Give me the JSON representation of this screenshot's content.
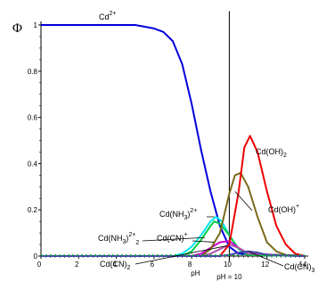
{
  "chart_data": {
    "type": "line",
    "ylabel": "Φ",
    "xlabel": "pH",
    "xlim": [
      0,
      14
    ],
    "ylim": [
      0,
      1
    ],
    "x_ticks": [
      "0",
      "2",
      "4",
      "6",
      "8",
      "10",
      "12",
      "14"
    ],
    "y_ticks": [
      "0",
      "0.2",
      "0.4",
      "0.6",
      "0.8",
      "1"
    ],
    "grid": false,
    "marker_line": {
      "x": 10,
      "label": "pH = 10"
    },
    "series": [
      {
        "name": "Cd2+",
        "color": "#0000dd",
        "x": [
          0,
          5,
          6,
          6.5,
          7,
          7.5,
          8,
          8.5,
          9,
          9.5,
          10,
          10.5,
          14
        ],
        "y": [
          1,
          1,
          0.985,
          0.97,
          0.93,
          0.83,
          0.66,
          0.46,
          0.28,
          0.13,
          0.04,
          0.01,
          0
        ]
      },
      {
        "name": "Cd(NH3)2+",
        "color": "#00e5ee",
        "x": [
          0,
          7,
          7.5,
          8,
          8.5,
          9,
          9.3,
          9.6,
          10,
          10.5,
          11,
          14
        ],
        "y": [
          0,
          0,
          0.01,
          0.04,
          0.09,
          0.15,
          0.17,
          0.15,
          0.09,
          0.03,
          0.005,
          0
        ]
      },
      {
        "name": "Cd(NH3)2 2+",
        "color": "#00cc44",
        "x": [
          0,
          7.5,
          8,
          8.5,
          9,
          9.2,
          9.5,
          10,
          10.5,
          11,
          14
        ],
        "y": [
          0,
          0,
          0.02,
          0.07,
          0.13,
          0.15,
          0.14,
          0.09,
          0.03,
          0.005,
          0
        ]
      },
      {
        "name": "Cd(CN)+",
        "color": "#cc00cc",
        "x": [
          0,
          8,
          8.5,
          9,
          9.5,
          10,
          10.5,
          11,
          14
        ],
        "y": [
          0,
          0,
          0.01,
          0.035,
          0.06,
          0.065,
          0.035,
          0.01,
          0
        ]
      },
      {
        "name": "Cd(CN)2",
        "color": "#aa55aa",
        "x": [
          0,
          8.5,
          9,
          9.5,
          10,
          10.5,
          11,
          14
        ],
        "y": [
          0,
          0,
          0.01,
          0.03,
          0.05,
          0.035,
          0.01,
          0
        ]
      },
      {
        "name": "Cd(OH)+",
        "color": "#7a6a1a",
        "x": [
          0,
          8.5,
          9,
          9.5,
          10,
          10.3,
          10.6,
          11,
          11.5,
          12,
          12.5,
          13,
          14
        ],
        "y": [
          0,
          0,
          0.03,
          0.1,
          0.27,
          0.35,
          0.36,
          0.3,
          0.17,
          0.06,
          0.02,
          0.005,
          0
        ]
      },
      {
        "name": "Cd(OH)2",
        "color": "#ee0000",
        "x": [
          0,
          9.5,
          10,
          10.5,
          10.8,
          11.1,
          11.5,
          12,
          12.5,
          13,
          13.5,
          14
        ],
        "y": [
          0,
          0,
          0.05,
          0.28,
          0.47,
          0.52,
          0.45,
          0.28,
          0.13,
          0.05,
          0.01,
          0
        ]
      },
      {
        "name": "Cd(CN)3-",
        "color": "#4444aa",
        "x": [
          0,
          9.5,
          10,
          10.5,
          11,
          11.5,
          12,
          14
        ],
        "y": [
          0,
          0,
          0.005,
          0.015,
          0.02,
          0.015,
          0.005,
          0
        ]
      }
    ],
    "annotations": [
      {
        "text": "Cd",
        "sup": "2+"
      },
      {
        "text": "Cd(OH)",
        "sub": "2"
      },
      {
        "text": "Cd(OH)",
        "sup": "+"
      },
      {
        "text": "Cd(NH",
        "sub": "3",
        "text2": ")",
        "sup": "2+"
      },
      {
        "text": "Cd(NH",
        "sub": "3",
        "text2": ")",
        "sup": "2+",
        "sub2": "2"
      },
      {
        "text": "Cd(CN)",
        "sup": "+"
      },
      {
        "text": "Cd(CN)",
        "sub": "2"
      },
      {
        "text": "Cd(CN)",
        "sub": "3"
      }
    ]
  }
}
